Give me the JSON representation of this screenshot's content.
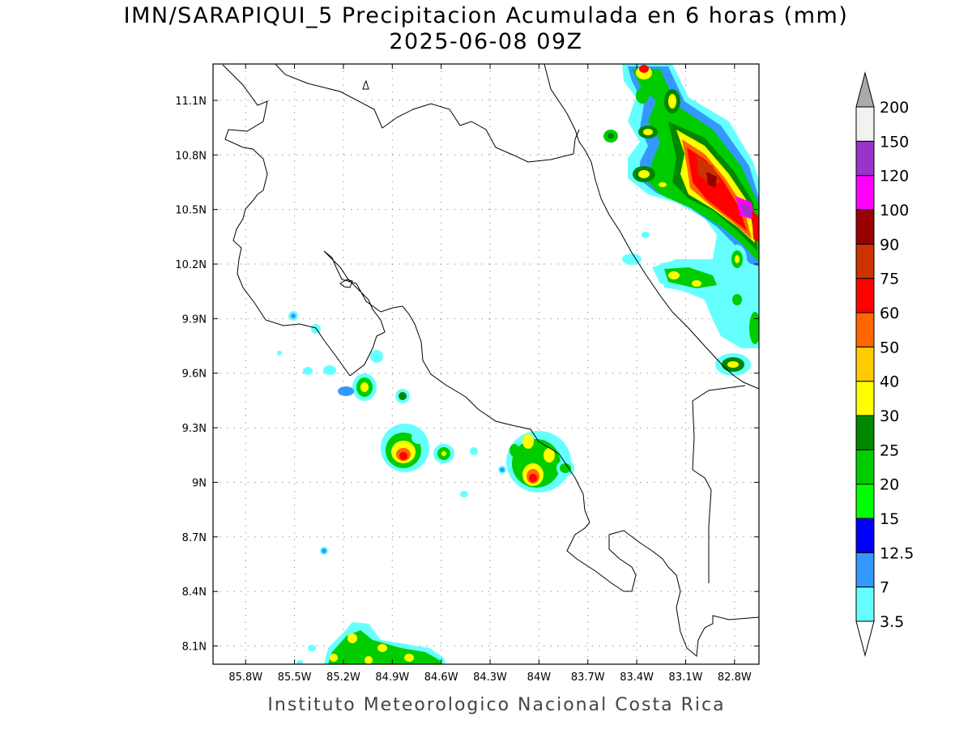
{
  "title_line1": "IMN/SARAPIQUI_5 Precipitacion Acumulada en 6 horas (mm)",
  "title_line2": "2025-06-08 09Z",
  "footer": "Instituto Meteorologico Nacional Costa Rica",
  "chart_data": {
    "type": "heatmap",
    "variable": "Precipitacion Acumulada en 6 horas (mm)",
    "valid_time": "2025-06-08 09Z",
    "xlim": [
      -86.0,
      -82.65
    ],
    "ylim": [
      8.0,
      11.3
    ],
    "grid": true,
    "x_ticks": [
      {
        "value": -85.8,
        "label": "85.8W"
      },
      {
        "value": -85.5,
        "label": "85.5W"
      },
      {
        "value": -85.2,
        "label": "85.2W"
      },
      {
        "value": -84.9,
        "label": "84.9W"
      },
      {
        "value": -84.6,
        "label": "84.6W"
      },
      {
        "value": -84.3,
        "label": "84.3W"
      },
      {
        "value": -84.0,
        "label": "84W"
      },
      {
        "value": -83.7,
        "label": "83.7W"
      },
      {
        "value": -83.4,
        "label": "83.4W"
      },
      {
        "value": -83.1,
        "label": "83.1W"
      },
      {
        "value": -82.8,
        "label": "82.8W"
      }
    ],
    "y_ticks": [
      {
        "value": 8.1,
        "label": "8.1N"
      },
      {
        "value": 8.4,
        "label": "8.4N"
      },
      {
        "value": 8.7,
        "label": "8.7N"
      },
      {
        "value": 9.0,
        "label": "9N"
      },
      {
        "value": 9.3,
        "label": "9.3N"
      },
      {
        "value": 9.6,
        "label": "9.6N"
      },
      {
        "value": 9.9,
        "label": "9.9N"
      },
      {
        "value": 10.2,
        "label": "10.2N"
      },
      {
        "value": 10.5,
        "label": "10.5N"
      },
      {
        "value": 10.8,
        "label": "10.8N"
      },
      {
        "value": 11.1,
        "label": "11.1N"
      }
    ],
    "colorbar": {
      "placement": "right",
      "levels": [
        "3.5",
        "7",
        "12.5",
        "15",
        "20",
        "25",
        "30",
        "40",
        "50",
        "60",
        "75",
        "90",
        "100",
        "120",
        "150",
        "200"
      ],
      "colors": [
        "#ffffff",
        "#66ffff",
        "#3399ff",
        "#0000ff",
        "#00ff00",
        "#00cc00",
        "#008800",
        "#ffff00",
        "#ffcc00",
        "#ff6600",
        "#ff0000",
        "#cc3300",
        "#990000",
        "#ff00ff",
        "#9933cc",
        "#f2f2f2",
        "#aaaaaa"
      ]
    },
    "precip_cells": [
      {
        "lon": -82.95,
        "lat": 10.85,
        "value": 75
      },
      {
        "lon": -82.8,
        "lat": 10.7,
        "value": 60
      },
      {
        "lon": -82.7,
        "lat": 10.5,
        "value": 120
      },
      {
        "lon": -83.15,
        "lat": 11.05,
        "value": 30
      },
      {
        "lon": -83.25,
        "lat": 11.25,
        "value": 60
      },
      {
        "lon": -83.2,
        "lat": 10.95,
        "value": 30
      },
      {
        "lon": -83.25,
        "lat": 10.75,
        "value": 40
      },
      {
        "lon": -83.1,
        "lat": 10.15,
        "value": 30
      },
      {
        "lon": -82.75,
        "lat": 10.25,
        "value": 30
      },
      {
        "lon": -82.65,
        "lat": 9.85,
        "value": 25
      },
      {
        "lon": -82.75,
        "lat": 9.67,
        "value": 40
      },
      {
        "lon": -84.88,
        "lat": 9.17,
        "value": 60
      },
      {
        "lon": -83.95,
        "lat": 9.03,
        "value": 60
      },
      {
        "lon": -83.85,
        "lat": 9.17,
        "value": 40
      },
      {
        "lon": -84.95,
        "lat": 9.53,
        "value": 40
      },
      {
        "lon": -84.55,
        "lat": 9.15,
        "value": 30
      },
      {
        "lon": -84.8,
        "lat": 9.48,
        "value": 25
      },
      {
        "lon": -84.0,
        "lat": 9.23,
        "value": 30
      },
      {
        "lon": -83.75,
        "lat": 9.08,
        "value": 25
      },
      {
        "lon": -84.95,
        "lat": 8.07,
        "value": 30
      },
      {
        "lon": -84.7,
        "lat": 8.05,
        "value": 30
      }
    ]
  }
}
